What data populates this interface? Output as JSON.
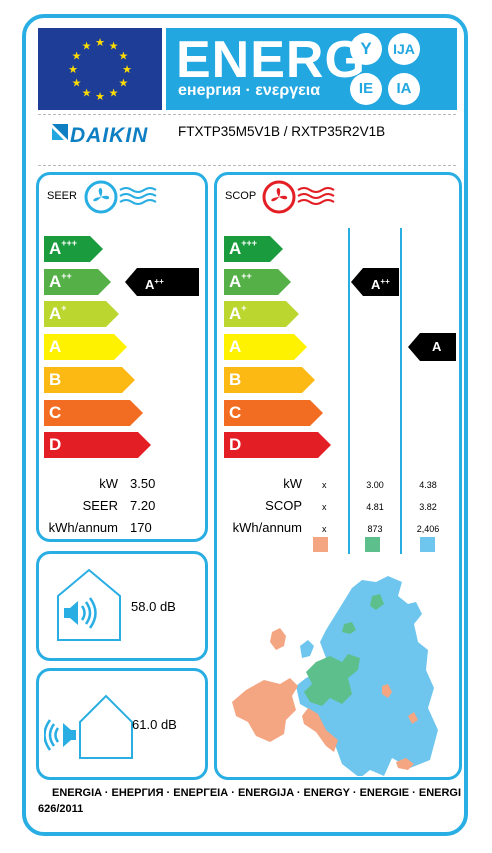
{
  "header": {
    "energ": "ENERG",
    "subtitle": "енергия · ενεργεια",
    "circles": [
      "Y",
      "IJA",
      "IE",
      "IA"
    ]
  },
  "brand": {
    "name": "DAIKIN",
    "model": "FTXTP35M5V1B / RXTP35R2V1B"
  },
  "classes": [
    {
      "letter": "A",
      "sup": "+++",
      "color": "#1a9c3e"
    },
    {
      "letter": "A",
      "sup": "++",
      "color": "#55b047"
    },
    {
      "letter": "A",
      "sup": "+",
      "color": "#bcd630"
    },
    {
      "letter": "A",
      "sup": "",
      "color": "#fff200"
    },
    {
      "letter": "B",
      "sup": "",
      "color": "#fcb813"
    },
    {
      "letter": "C",
      "sup": "",
      "color": "#f26d21"
    },
    {
      "letter": "D",
      "sup": "",
      "color": "#e31e24"
    }
  ],
  "seer": {
    "label": "SEER",
    "marker_letter": "A",
    "marker_sup": "++",
    "rows": [
      {
        "label": "kW",
        "value": "3.50"
      },
      {
        "label": "SEER",
        "value": "7.20"
      },
      {
        "label": "kWh/annum",
        "value": "170"
      }
    ]
  },
  "scop": {
    "label": "SCOP",
    "marker1_letter": "A",
    "marker1_sup": "++",
    "marker2_letter": "A",
    "rows": [
      {
        "label": "kW",
        "x": "x",
        "avg": "3.00",
        "cold": "4.38"
      },
      {
        "label": "SCOP",
        "x": "x",
        "avg": "4.81",
        "cold": "3.82"
      },
      {
        "label": "kWh/annum",
        "x": "x",
        "avg": "873",
        "cold": "2,406"
      }
    ],
    "zone_colors": {
      "warm": "#f4a582",
      "average": "#5dc08c",
      "colder": "#6ec6ef"
    }
  },
  "noise": {
    "indoor": "58.0",
    "outdoor": "61.0",
    "unit": "dB"
  },
  "footer": {
    "line1": "ENERGIA · ЕНЕРГИЯ · ΕΝΕΡΓΕΙΑ · ENERGIJA · ENERGY · ENERGIE · ENERGI",
    "line2": "626/2011"
  }
}
